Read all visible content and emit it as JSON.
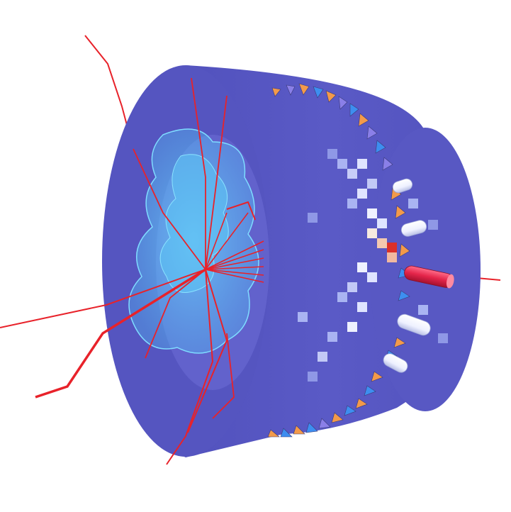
{
  "colors": {
    "background": "#ffffff",
    "barrel_front": "#5656c2",
    "barrel_side": "#5a5ac4",
    "barrel_shade": "#4b4bb6",
    "inner_disc": "#6262cc",
    "cloud": "#4fc3f7",
    "cloud_edge": "#7fdcff",
    "track": "#e8222a",
    "cell_light": "#dfe4ff",
    "cell_mid": "#a9b4f2",
    "cell_hot": "#f3c9b0",
    "cell_core": "#d9302a",
    "cone_orange": "#f39a4a",
    "cone_blue": "#3d8ef0",
    "cone_violet": "#8a7fe8",
    "cylinder_white": "#f4f6ff",
    "cylinder_red": "#e4254a"
  },
  "scene": {
    "description_icons": [
      "detector-barrel-icon",
      "particle-track-icon",
      "energy-cloud-icon",
      "calorimeter-cell-icon",
      "muon-cone-icon",
      "jet-cylinder-icon"
    ]
  }
}
